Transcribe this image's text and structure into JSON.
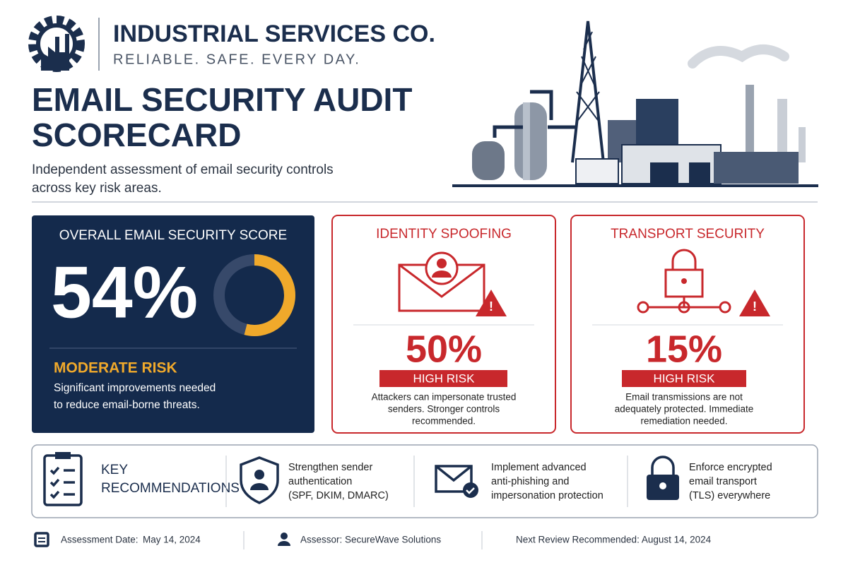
{
  "header": {
    "company": "INDUSTRIAL SERVICES CO.",
    "tagline": "RELIABLE. SAFE. EVERY DAY.",
    "title_lines": [
      "EMAIL SECURITY AUDIT",
      "SCORECARD"
    ],
    "subtitle_lines": [
      "Independent assessment of email security controls",
      "across key risk areas."
    ]
  },
  "overall": {
    "heading": "OVERALL EMAIL SECURITY SCORE",
    "score": {
      "value": 54,
      "label": "54%"
    },
    "risk": "MODERATE RISK",
    "description_lines": [
      "Significant improvements needed",
      "to reduce email-borne threats."
    ]
  },
  "cards": [
    {
      "title": "IDENTITY SPOOFING",
      "score": "50%",
      "risk": "HIGH RISK",
      "description_lines": [
        "Attackers can impersonate trusted",
        "senders. Stronger controls",
        "recommended."
      ]
    },
    {
      "title": "TRANSPORT SECURITY",
      "score": "15%",
      "risk": "HIGH RISK",
      "description_lines": [
        "Email transmissions are not",
        "adequately protected. Immediate",
        "remediation needed."
      ]
    }
  ],
  "recommendations": {
    "heading_lines": [
      "KEY",
      "RECOMMENDATIONS"
    ],
    "items": [
      [
        "Strengthen sender",
        "authentication",
        "(SPF, DKIM, DMARC)"
      ],
      [
        "Implement advanced",
        "anti-phishing and",
        "impersonation protection"
      ],
      [
        "Enforce encrypted",
        "email transport",
        "(TLS) everywhere"
      ]
    ]
  },
  "footer": {
    "assessment_label": "Assessment Date:",
    "assessment_date": "May 14, 2024",
    "assessor": "Assessor: SecureWave Solutions",
    "next_review": "Next Review Recommended: August 14, 2024"
  }
}
